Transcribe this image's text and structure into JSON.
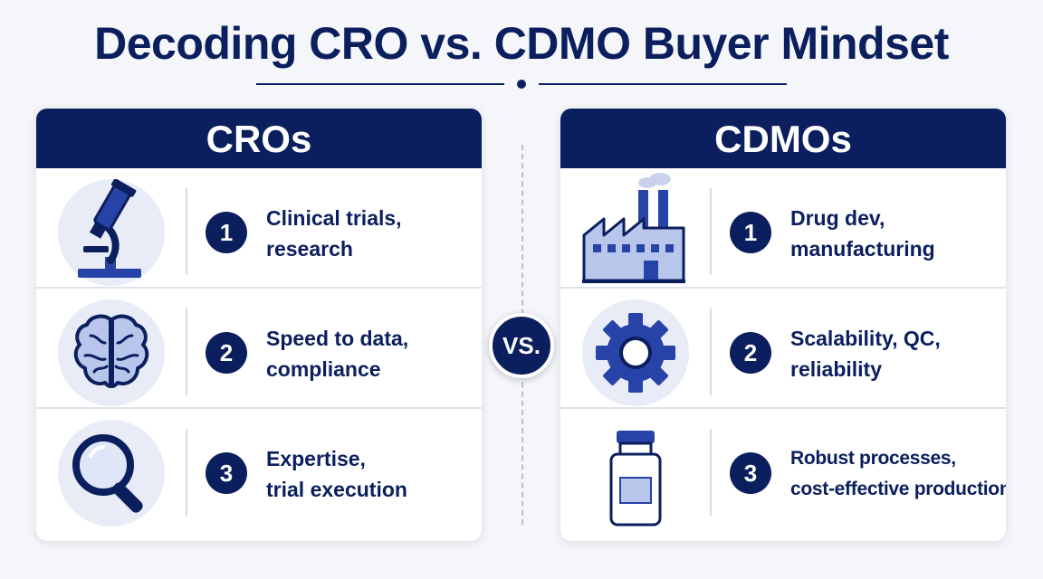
{
  "title": "Decoding CRO vs. CDMO Buyer Mindset",
  "vs_label": "VS.",
  "colors": {
    "navy": "#0b1f5e",
    "icon_blue": "#2743a8",
    "light_blue": "#b9c6ec",
    "circle_bg": "#e8ecf6",
    "background": "#f5f6f9"
  },
  "panels": [
    {
      "header": "CROs",
      "rows": [
        {
          "number": "1",
          "icon": "microscope-icon",
          "line1": "Clinical trials,",
          "line2": "research"
        },
        {
          "number": "2",
          "icon": "brain-icon",
          "line1": "Speed to data,",
          "line2": "compliance"
        },
        {
          "number": "3",
          "icon": "magnifying-glass-icon",
          "line1": "Expertise,",
          "line2": "trial execution"
        }
      ]
    },
    {
      "header": "CDMOs",
      "rows": [
        {
          "number": "1",
          "icon": "factory-icon",
          "line1": "Drug dev,",
          "line2": "manufacturing"
        },
        {
          "number": "2",
          "icon": "gear-icon",
          "line1": "Scalability, QC,",
          "line2": "reliability"
        },
        {
          "number": "3",
          "icon": "vial-icon",
          "line1": "Robust processes,",
          "line2": "cost-effective production"
        }
      ]
    }
  ]
}
